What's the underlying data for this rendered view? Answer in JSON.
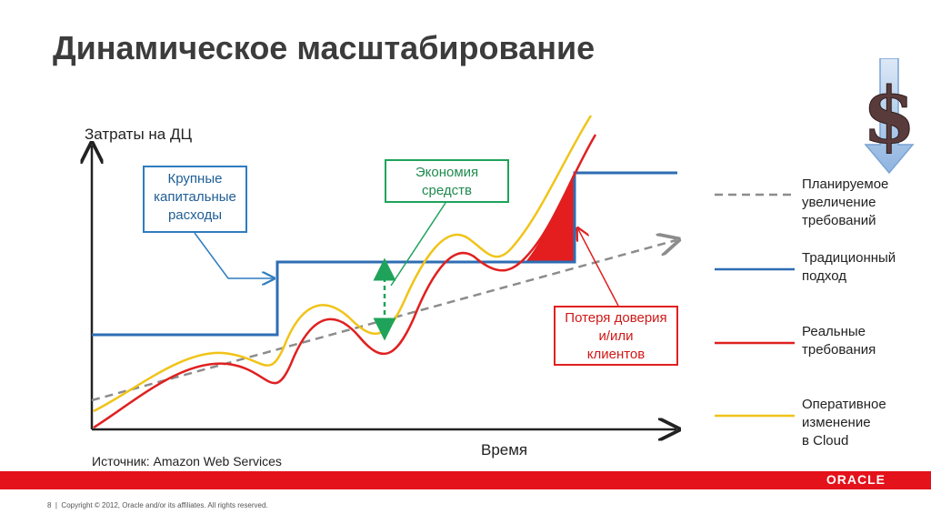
{
  "title": "Динамическое масштабирование",
  "y_axis_label": "Затраты на ДЦ",
  "x_axis_label": "Время",
  "source": "Источник: Amazon Web Services",
  "callouts": {
    "capex": [
      "Крупные",
      "капитальные",
      "расходы"
    ],
    "savings": [
      "Экономия",
      "средств"
    ],
    "loss": [
      "Потеря доверия",
      "и/или",
      "клиентов"
    ]
  },
  "legend": [
    {
      "lines": [
        "Планируемое",
        "увеличение",
        "требований"
      ],
      "color": "#8c8c8c",
      "style": "dashed"
    },
    {
      "lines": [
        "Традиционный",
        "подход"
      ],
      "color": "#2e6db4",
      "style": "solid"
    },
    {
      "lines": [
        "Реальные",
        "требования"
      ],
      "color": "#e02020",
      "style": "solid"
    },
    {
      "lines": [
        "Оперативное",
        "изменение",
        "в Cloud"
      ],
      "color": "#f0c419",
      "style": "solid"
    }
  ],
  "footer": {
    "brand": "ORACLE",
    "page_number": "8",
    "copyright": "Copyright © 2012, Oracle and/or its affiliates. All rights reserved."
  },
  "colors": {
    "planned": "#8c8c8c",
    "traditional": "#2e6db4",
    "actual": "#e02020",
    "cloud": "#f0c419",
    "savings_arrow": "#1fa35a",
    "brand_bar": "#e4121b"
  },
  "icons": [
    "dollar-icon",
    "down-arrow-icon"
  ]
}
